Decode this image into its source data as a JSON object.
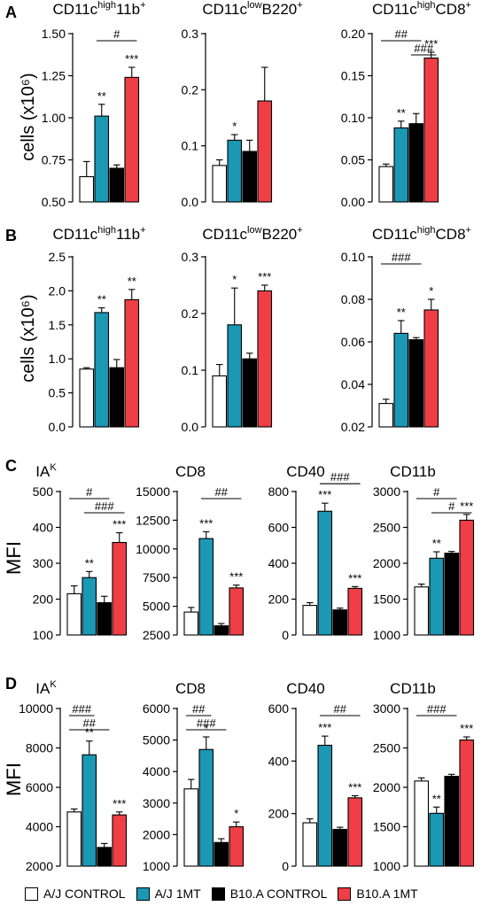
{
  "colors": {
    "A/J CONTROL": "#ffffff",
    "A/J 1MT": "#1b98b4",
    "B10.A CONTROL": "#000000",
    "B10.A 1MT": "#ef3e46"
  },
  "legend": [
    {
      "label": "A/J CONTROL",
      "color": "#ffffff"
    },
    {
      "label": "A/J 1MT",
      "color": "#1b98b4"
    },
    {
      "label": "B10.A CONTROL",
      "color": "#000000"
    },
    {
      "label": "B10.A 1MT",
      "color": "#ef3e46"
    }
  ],
  "panels": [
    {
      "letter": "A",
      "ylabel": "cells (x10⁶)"
    },
    {
      "letter": "B",
      "ylabel": "cells (x10⁶)"
    },
    {
      "letter": "C",
      "ylabel": "MFI"
    },
    {
      "letter": "D",
      "ylabel": "MFI"
    }
  ],
  "chart_data": [
    {
      "type": "bar",
      "panel": "A",
      "title": "CD11c^high 11b^+",
      "categories": [
        "A/J CONTROL",
        "A/J 1MT",
        "B10.A CONTROL",
        "B10.A 1MT"
      ],
      "values": [
        0.65,
        1.01,
        0.7,
        1.24
      ],
      "errors": [
        0.09,
        0.07,
        0.02,
        0.06
      ],
      "ylim": [
        0.5,
        1.5
      ],
      "yticks": [
        "0.50",
        "0.75",
        "1.00",
        "1.25",
        "1.50"
      ],
      "stars": [
        "",
        "**",
        "",
        "***"
      ],
      "brackets": [
        {
          "from": 1,
          "to": 3,
          "label": "#"
        }
      ]
    },
    {
      "type": "bar",
      "panel": "A",
      "title": "CD11c^low B220^+",
      "categories": [
        "A/J CONTROL",
        "A/J 1MT",
        "B10.A CONTROL",
        "B10.A 1MT"
      ],
      "values": [
        0.065,
        0.11,
        0.09,
        0.18
      ],
      "errors": [
        0.01,
        0.01,
        0.02,
        0.06
      ],
      "ylim": [
        0,
        0.3
      ],
      "yticks": [
        "0.0",
        "0.1",
        "0.2",
        "0.3"
      ],
      "stars": [
        "",
        "*",
        "",
        ""
      ],
      "brackets": []
    },
    {
      "type": "bar",
      "panel": "A",
      "title": "CD11c^high CD8^+",
      "categories": [
        "A/J CONTROL",
        "A/J 1MT",
        "B10.A CONTROL",
        "B10.A 1MT"
      ],
      "values": [
        0.042,
        0.088,
        0.093,
        0.171
      ],
      "errors": [
        0.003,
        0.008,
        0.012,
        0.007
      ],
      "ylim": [
        0,
        0.2
      ],
      "yticks": [
        "0.00",
        "0.05",
        "0.10",
        "0.15",
        "0.20"
      ],
      "stars": [
        "",
        "**",
        "",
        "***"
      ],
      "brackets": [
        {
          "from": 0,
          "to": 2,
          "label": "##"
        },
        {
          "from": 2,
          "to": 3,
          "label": "###"
        }
      ]
    },
    {
      "type": "bar",
      "panel": "B",
      "title": "CD11c^high 11b^+",
      "categories": [
        "A/J CONTROL",
        "A/J 1MT",
        "B10.A CONTROL",
        "B10.A 1MT"
      ],
      "values": [
        0.85,
        1.68,
        0.87,
        1.87
      ],
      "errors": [
        0.02,
        0.07,
        0.12,
        0.15
      ],
      "ylim": [
        0,
        2.5
      ],
      "yticks": [
        "0.0",
        "0.5",
        "1.0",
        "1.5",
        "2.0",
        "2.5"
      ],
      "stars": [
        "",
        "**",
        "",
        "**"
      ],
      "brackets": []
    },
    {
      "type": "bar",
      "panel": "B",
      "title": "CD11c^low B220^+",
      "categories": [
        "A/J CONTROL",
        "A/J 1MT",
        "B10.A CONTROL",
        "B10.A 1MT"
      ],
      "values": [
        0.09,
        0.18,
        0.12,
        0.24
      ],
      "errors": [
        0.02,
        0.065,
        0.01,
        0.01
      ],
      "ylim": [
        0,
        0.3
      ],
      "yticks": [
        "0.0",
        "0.1",
        "0.2",
        "0.3"
      ],
      "stars": [
        "",
        "*",
        "",
        "***"
      ],
      "brackets": []
    },
    {
      "type": "bar",
      "panel": "B",
      "title": "CD11c^high CD8^+",
      "categories": [
        "A/J CONTROL",
        "A/J 1MT",
        "B10.A CONTROL",
        "B10.A 1MT"
      ],
      "values": [
        0.031,
        0.064,
        0.061,
        0.075
      ],
      "errors": [
        0.002,
        0.006,
        0.001,
        0.005
      ],
      "ylim": [
        0.02,
        0.1
      ],
      "yticks": [
        "0.02",
        "0.04",
        "0.06",
        "0.08",
        "0.10"
      ],
      "stars": [
        "",
        "**",
        "",
        "*"
      ],
      "brackets": [
        {
          "from": 0,
          "to": 2,
          "label": "###"
        }
      ]
    },
    {
      "type": "bar",
      "panel": "C",
      "title": "IA^K",
      "categories": [
        "A/J CONTROL",
        "A/J 1MT",
        "B10.A CONTROL",
        "B10.A 1MT"
      ],
      "values": [
        215,
        260,
        190,
        358
      ],
      "errors": [
        22,
        17,
        18,
        27
      ],
      "ylim": [
        100,
        500
      ],
      "yticks": [
        "100",
        "200",
        "300",
        "400",
        "500"
      ],
      "stars": [
        "",
        "**",
        "",
        "***"
      ],
      "brackets": [
        {
          "from": 0,
          "to": 2,
          "label": "#"
        },
        {
          "from": 1,
          "to": 3,
          "label": "###"
        }
      ]
    },
    {
      "type": "bar",
      "panel": "C",
      "title": "CD8",
      "categories": [
        "A/J CONTROL",
        "A/J 1MT",
        "B10.A CONTROL",
        "B10.A 1MT"
      ],
      "values": [
        4500,
        10900,
        3300,
        6600
      ],
      "errors": [
        400,
        600,
        200,
        250
      ],
      "ylim": [
        2500,
        15000
      ],
      "yticks": [
        "2500",
        "5000",
        "7500",
        "10000",
        "12500",
        "15000"
      ],
      "stars": [
        "",
        "***",
        "",
        "***"
      ],
      "brackets": [
        {
          "from": 1,
          "to": 3,
          "label": "##"
        }
      ]
    },
    {
      "type": "bar",
      "panel": "C",
      "title": "CD40",
      "categories": [
        "A/J CONTROL",
        "A/J 1MT",
        "B10.A CONTROL",
        "B10.A 1MT"
      ],
      "values": [
        165,
        690,
        140,
        260
      ],
      "errors": [
        15,
        45,
        10,
        10
      ],
      "ylim": [
        0,
        800
      ],
      "yticks": [
        "0",
        "200",
        "400",
        "600",
        "800"
      ],
      "stars": [
        "",
        "***",
        "",
        "***"
      ],
      "brackets": [
        {
          "from": 1,
          "to": 3,
          "label": "###"
        }
      ]
    },
    {
      "type": "bar",
      "panel": "C",
      "title": "CD11b",
      "categories": [
        "A/J CONTROL",
        "A/J 1MT",
        "B10.A CONTROL",
        "B10.A 1MT"
      ],
      "values": [
        1670,
        2070,
        2140,
        2600
      ],
      "errors": [
        40,
        90,
        25,
        80
      ],
      "ylim": [
        1000,
        3000
      ],
      "yticks": [
        "1000",
        "1500",
        "2000",
        "2500",
        "3000"
      ],
      "stars": [
        "",
        "**",
        "",
        "***"
      ],
      "brackets": [
        {
          "from": 0,
          "to": 2,
          "label": "#"
        },
        {
          "from": 1,
          "to": 3,
          "label": "#"
        }
      ]
    },
    {
      "type": "bar",
      "panel": "D",
      "title": "IA^K",
      "categories": [
        "A/J CONTROL",
        "A/J 1MT",
        "B10.A CONTROL",
        "B10.A 1MT"
      ],
      "values": [
        4750,
        7650,
        2950,
        4600
      ],
      "errors": [
        150,
        700,
        200,
        150
      ],
      "ylim": [
        2000,
        10000
      ],
      "yticks": [
        "2000",
        "4000",
        "6000",
        "8000",
        "10000"
      ],
      "stars": [
        "",
        "**",
        "",
        "***"
      ],
      "brackets": [
        {
          "from": 0,
          "to": 1,
          "label": "###"
        },
        {
          "from": 0,
          "to": 2,
          "label": "##"
        }
      ]
    },
    {
      "type": "bar",
      "panel": "D",
      "title": "CD8",
      "categories": [
        "A/J CONTROL",
        "A/J 1MT",
        "B10.A CONTROL",
        "B10.A 1MT"
      ],
      "values": [
        3450,
        4700,
        1750,
        2250
      ],
      "errors": [
        300,
        400,
        120,
        150
      ],
      "ylim": [
        1000,
        6000
      ],
      "yticks": [
        "1000",
        "2000",
        "3000",
        "4000",
        "5000",
        "6000"
      ],
      "stars": [
        "",
        "*",
        "",
        "*"
      ],
      "brackets": [
        {
          "from": 0,
          "to": 1,
          "label": "##"
        },
        {
          "from": 0,
          "to": 2,
          "label": "###"
        }
      ]
    },
    {
      "type": "bar",
      "panel": "D",
      "title": "CD40",
      "categories": [
        "A/J CONTROL",
        "A/J 1MT",
        "B10.A CONTROL",
        "B10.A 1MT"
      ],
      "values": [
        165,
        460,
        140,
        260
      ],
      "errors": [
        15,
        35,
        8,
        8
      ],
      "ylim": [
        0,
        600
      ],
      "yticks": [
        "0",
        "200",
        "400",
        "600"
      ],
      "stars": [
        "",
        "***",
        "",
        "***"
      ],
      "brackets": [
        {
          "from": 1,
          "to": 3,
          "label": "##"
        }
      ]
    },
    {
      "type": "bar",
      "panel": "D",
      "title": "CD11b",
      "categories": [
        "A/J CONTROL",
        "A/J 1MT",
        "B10.A CONTROL",
        "B10.A 1MT"
      ],
      "values": [
        2080,
        1670,
        2140,
        2600
      ],
      "errors": [
        40,
        80,
        25,
        40
      ],
      "ylim": [
        1000,
        3000
      ],
      "yticks": [
        "1000",
        "1500",
        "2000",
        "2500",
        "3000"
      ],
      "stars": [
        "",
        "**",
        "",
        "***"
      ],
      "brackets": [
        {
          "from": 0,
          "to": 2,
          "label": "###"
        }
      ]
    }
  ]
}
